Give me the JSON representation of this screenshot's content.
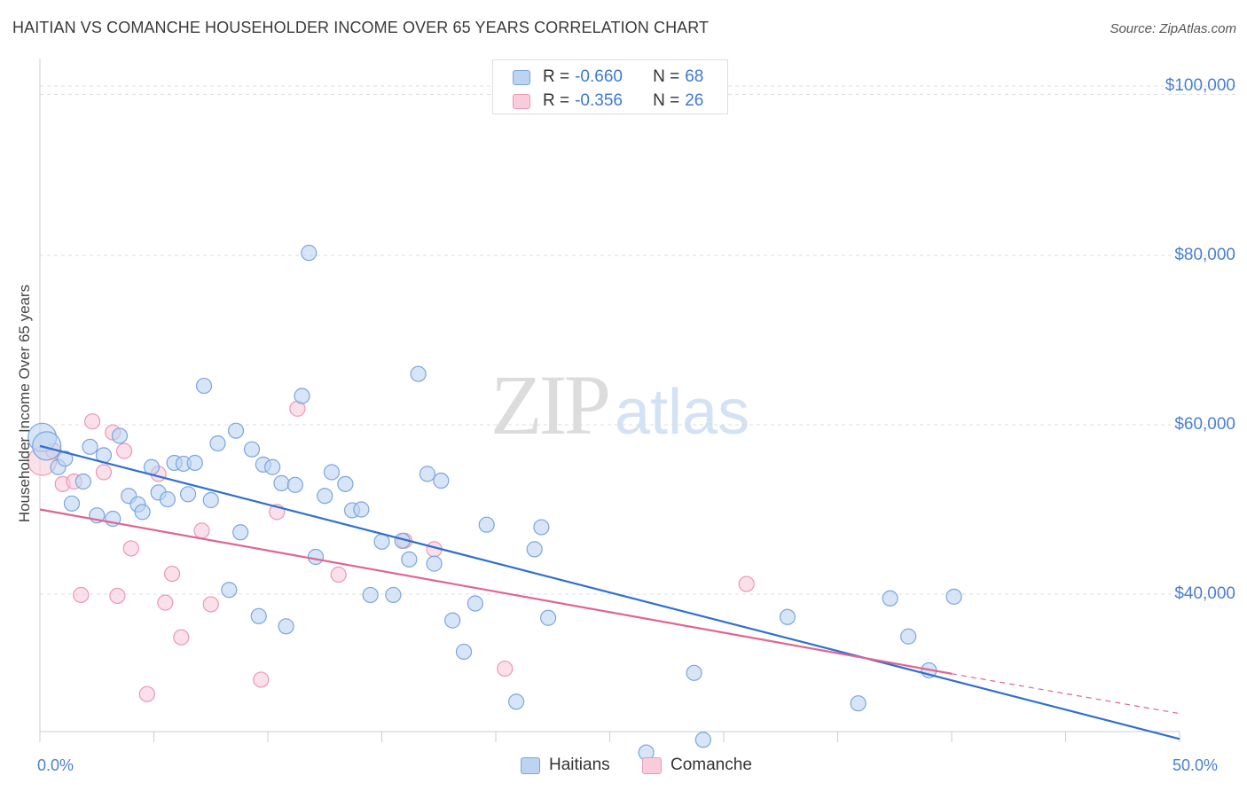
{
  "title": "HAITIAN VS COMANCHE HOUSEHOLDER INCOME OVER 65 YEARS CORRELATION CHART",
  "source": "Source: ZipAtlas.com",
  "watermark": {
    "zip": "ZIP",
    "atlas": "atlas"
  },
  "legend": {
    "r_label": "R =",
    "n_label": "N =",
    "rows": [
      {
        "r": "-0.660",
        "n": "68"
      },
      {
        "r": "-0.356",
        "n": "26"
      }
    ]
  },
  "colors": {
    "haitians_fill": "#bcd3f2",
    "haitians_stroke": "#7aa6e0",
    "haitians_line": "#2f6fd0",
    "comanche_fill": "#f7ccdb",
    "comanche_stroke": "#ec97b5",
    "comanche_line": "#e0658f",
    "grid": "#dddddd",
    "tick_label": "#4a7fd0"
  },
  "chart_data": {
    "type": "scatter",
    "title": "HAITIAN VS COMANCHE HOUSEHOLDER INCOME OVER 65 YEARS CORRELATION CHART",
    "xlabel": "",
    "ylabel": "Householder Income Over 65 years",
    "xlim": [
      0,
      50
    ],
    "ylim": [
      18000,
      102000
    ],
    "x_tick_labels": [
      "0.0%",
      "50.0%"
    ],
    "y_ticks": [
      40000,
      60000,
      80000,
      100000
    ],
    "y_tick_labels": [
      "$40,000",
      "$60,000",
      "$80,000",
      "$100,000"
    ],
    "grid": "horizontal dashed",
    "legend_placement": "top-center",
    "series": [
      {
        "name": "Haitians",
        "r": -0.66,
        "n": 68,
        "points": [
          [
            0.1,
            58500
          ],
          [
            0.3,
            57500
          ],
          [
            0.8,
            55000
          ],
          [
            1.1,
            56000
          ],
          [
            1.4,
            50700
          ],
          [
            1.9,
            53300
          ],
          [
            2.2,
            57400
          ],
          [
            2.5,
            49300
          ],
          [
            2.8,
            56400
          ],
          [
            3.2,
            48900
          ],
          [
            3.5,
            58700
          ],
          [
            3.9,
            51600
          ],
          [
            4.3,
            50600
          ],
          [
            4.5,
            49700
          ],
          [
            4.9,
            55000
          ],
          [
            5.2,
            52000
          ],
          [
            5.6,
            51200
          ],
          [
            5.9,
            55500
          ],
          [
            6.3,
            55400
          ],
          [
            6.5,
            51800
          ],
          [
            6.8,
            55500
          ],
          [
            7.2,
            64600
          ],
          [
            7.5,
            51100
          ],
          [
            7.8,
            57800
          ],
          [
            8.3,
            40500
          ],
          [
            8.6,
            59300
          ],
          [
            8.8,
            47300
          ],
          [
            9.3,
            57100
          ],
          [
            9.6,
            37400
          ],
          [
            9.8,
            55300
          ],
          [
            10.2,
            55000
          ],
          [
            10.6,
            53100
          ],
          [
            10.8,
            36200
          ],
          [
            11.2,
            52900
          ],
          [
            11.5,
            63400
          ],
          [
            11.8,
            80300
          ],
          [
            12.1,
            44400
          ],
          [
            12.5,
            51600
          ],
          [
            12.8,
            54400
          ],
          [
            13.4,
            53000
          ],
          [
            13.7,
            49900
          ],
          [
            14.1,
            50000
          ],
          [
            14.5,
            39900
          ],
          [
            15.0,
            46200
          ],
          [
            15.5,
            39900
          ],
          [
            15.9,
            46300
          ],
          [
            16.2,
            44100
          ],
          [
            16.6,
            66000
          ],
          [
            17.0,
            54200
          ],
          [
            17.3,
            43600
          ],
          [
            17.6,
            53400
          ],
          [
            18.1,
            36900
          ],
          [
            18.6,
            33200
          ],
          [
            19.1,
            38900
          ],
          [
            19.6,
            48200
          ],
          [
            20.9,
            27300
          ],
          [
            21.7,
            45300
          ],
          [
            22.0,
            47900
          ],
          [
            22.3,
            37200
          ],
          [
            26.6,
            21300
          ],
          [
            28.7,
            30700
          ],
          [
            29.1,
            22800
          ],
          [
            32.8,
            37300
          ],
          [
            35.9,
            27100
          ],
          [
            37.3,
            39500
          ],
          [
            38.1,
            35000
          ],
          [
            39.0,
            31000
          ],
          [
            40.1,
            39700
          ]
        ],
        "trend": {
          "x": [
            0,
            50
          ],
          "y": [
            57500,
            22900
          ]
        }
      },
      {
        "name": "Comanche",
        "r": -0.356,
        "n": 26,
        "points": [
          [
            0.1,
            55700
          ],
          [
            0.6,
            56900
          ],
          [
            1.0,
            53000
          ],
          [
            1.5,
            53300
          ],
          [
            1.8,
            39900
          ],
          [
            2.3,
            60400
          ],
          [
            2.8,
            54400
          ],
          [
            3.2,
            59100
          ],
          [
            3.4,
            39800
          ],
          [
            3.7,
            56900
          ],
          [
            4.0,
            45400
          ],
          [
            4.7,
            28200
          ],
          [
            5.2,
            54200
          ],
          [
            5.5,
            39000
          ],
          [
            5.8,
            42400
          ],
          [
            6.2,
            34900
          ],
          [
            7.1,
            47500
          ],
          [
            7.5,
            38800
          ],
          [
            9.7,
            29900
          ],
          [
            10.4,
            49700
          ],
          [
            11.3,
            61900
          ],
          [
            13.1,
            42300
          ],
          [
            16.0,
            46300
          ],
          [
            17.3,
            45300
          ],
          [
            20.4,
            31200
          ],
          [
            31.0,
            41200
          ]
        ],
        "trend": {
          "x": [
            0,
            40
          ],
          "y": [
            50000,
            30600
          ]
        },
        "trend_extrapolated": {
          "x": [
            40,
            50
          ],
          "y": [
            30600,
            25900
          ]
        }
      }
    ]
  }
}
